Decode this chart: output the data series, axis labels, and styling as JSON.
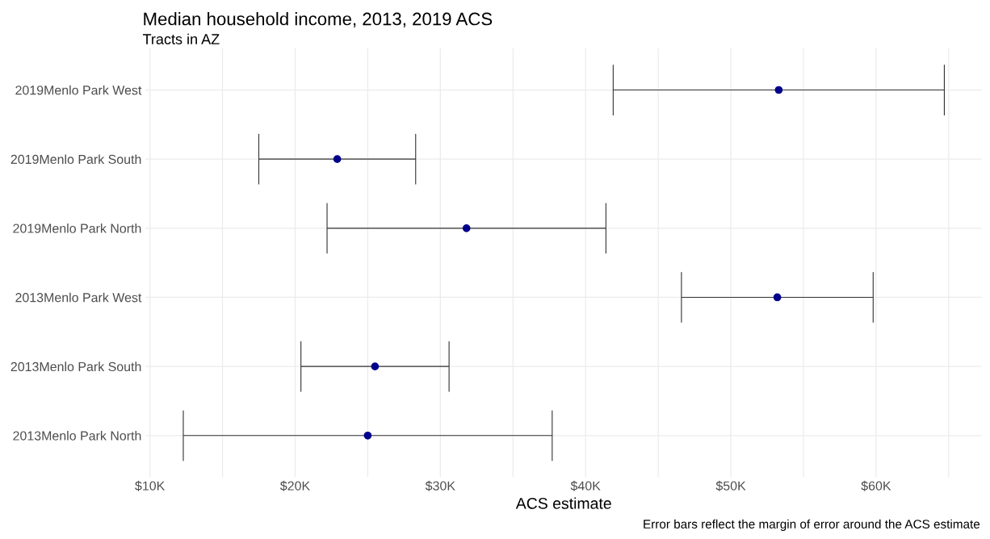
{
  "chart_data": {
    "type": "scatter",
    "title": "Median household income, 2013, 2019 ACS",
    "subtitle": "Tracts in AZ",
    "xlabel": "ACS estimate",
    "annotations": [
      "Error bars reflect the margin of error around the ACS estimate"
    ],
    "orientation": "horizontal",
    "color": "#00008b",
    "categories": [
      "2019Menlo Park West",
      "2019Menlo Park South",
      "2019Menlo Park North",
      "2013Menlo Park West",
      "2013Menlo Park South",
      "2013Menlo Park North"
    ],
    "values": [
      53300,
      22900,
      31800,
      53200,
      25500,
      25000
    ],
    "errors": [
      11400,
      5400,
      9600,
      6600,
      5100,
      12700
    ],
    "xlim": [
      9700,
      67300
    ],
    "xticks": [
      {
        "value": 10000,
        "label": "$10K"
      },
      {
        "value": 15000,
        "label": null
      },
      {
        "value": 20000,
        "label": "$20K"
      },
      {
        "value": 25000,
        "label": null
      },
      {
        "value": 30000,
        "label": "$30K"
      },
      {
        "value": 35000,
        "label": null
      },
      {
        "value": 40000,
        "label": "$40K"
      },
      {
        "value": 45000,
        "label": null
      },
      {
        "value": 50000,
        "label": "$50K"
      },
      {
        "value": 55000,
        "label": null
      },
      {
        "value": 60000,
        "label": "$60K"
      },
      {
        "value": 65000,
        "label": null
      }
    ],
    "grid": true,
    "marker": "circle"
  }
}
